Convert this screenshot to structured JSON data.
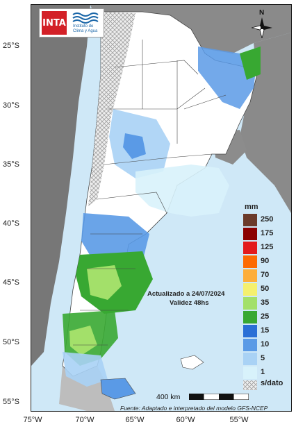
{
  "logos": {
    "inta_text": "INTA",
    "institute_line1": "Instituto de",
    "institute_line2": "Clima y Agua"
  },
  "north_arrow": {
    "label": "N"
  },
  "axes": {
    "latitude_labels": [
      "25°S",
      "30°S",
      "35°S",
      "40°S",
      "45°S",
      "50°S",
      "55°S"
    ],
    "longitude_labels": [
      "75°W",
      "70°W",
      "65°W",
      "60°W",
      "55°W"
    ]
  },
  "legend": {
    "title": "mm",
    "items": [
      {
        "label": "250",
        "color": "#6b3a2a"
      },
      {
        "label": "175",
        "color": "#8b0000"
      },
      {
        "label": "125",
        "color": "#e31a1c"
      },
      {
        "label": "90",
        "color": "#fd6a02"
      },
      {
        "label": "70",
        "color": "#fdae3b"
      },
      {
        "label": "50",
        "color": "#f5f06e"
      },
      {
        "label": "35",
        "color": "#a3e06a"
      },
      {
        "label": "25",
        "color": "#38a832"
      },
      {
        "label": "15",
        "color": "#2a6fd6"
      },
      {
        "label": "10",
        "color": "#5a9ae6"
      },
      {
        "label": "5",
        "color": "#a9d2f5"
      },
      {
        "label": "1",
        "color": "#d8f2fb"
      },
      {
        "label": "s/dato",
        "color": "#dddddd"
      }
    ]
  },
  "annotation": {
    "updated": "Actualizado a 24/07/2024",
    "validity": "Validez 48hs"
  },
  "scale_bar": {
    "label": "400 km"
  },
  "source": "Fuente: Adaptado e interpretado del modelo GFS-NCEP"
}
